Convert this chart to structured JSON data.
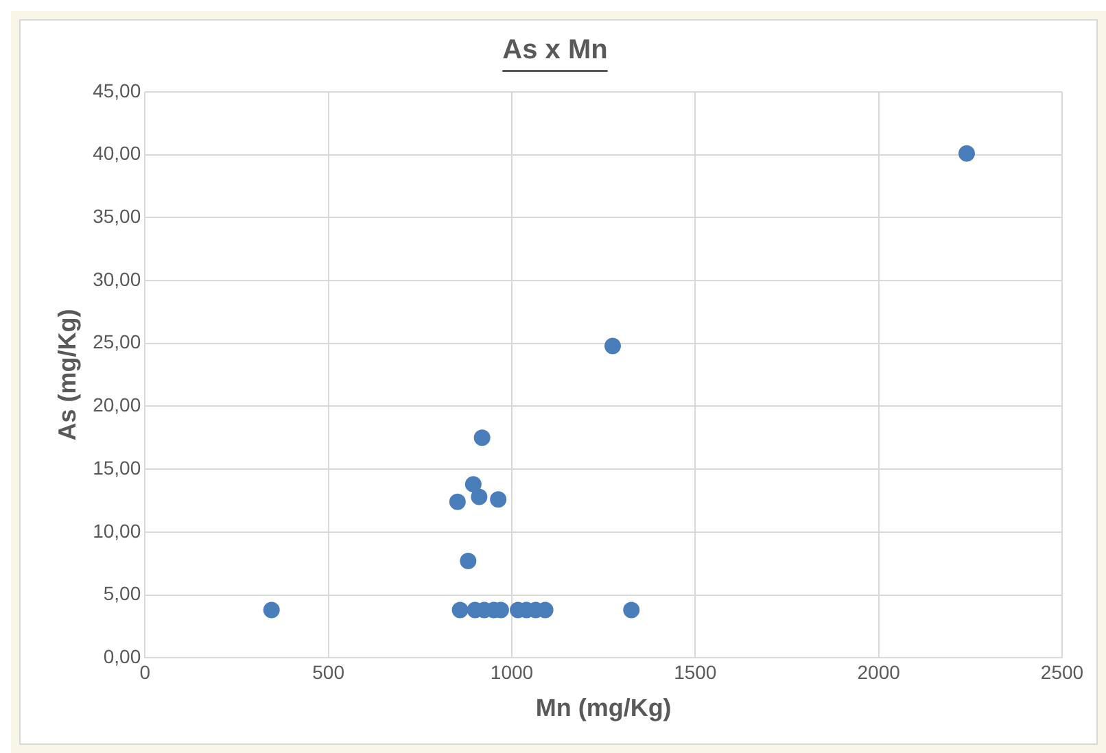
{
  "chart_data": {
    "type": "scatter",
    "title": "As x Mn",
    "xlabel": "Mn (mg/Kg)",
    "ylabel": "As (mg/Kg)",
    "x": [
      345,
      2240,
      1275,
      1326,
      919,
      895,
      852,
      911,
      963,
      881,
      859,
      900,
      925,
      951,
      970,
      1017,
      1040,
      1065,
      1091
    ],
    "series": [
      {
        "color": "#4a7ebb",
        "values": [
          3.8,
          40.1,
          24.8,
          3.8,
          17.5,
          13.8,
          12.4,
          12.8,
          12.6,
          7.7,
          3.8,
          3.8,
          3.8,
          3.8,
          3.8,
          3.8,
          3.8,
          3.8,
          3.8
        ]
      }
    ],
    "xlim": [
      0,
      2500
    ],
    "xticks": [
      0,
      500,
      1000,
      1500,
      2000,
      2500
    ],
    "ylim": [
      0,
      45
    ],
    "yticks": [
      {
        "value": 0,
        "label": "0,00"
      },
      {
        "value": 5,
        "label": "5,00"
      },
      {
        "value": 10,
        "label": "10,00"
      },
      {
        "value": 15,
        "label": "15,00"
      },
      {
        "value": 20,
        "label": "20,00"
      },
      {
        "value": 25,
        "label": "25,00"
      },
      {
        "value": 30,
        "label": "30,00"
      },
      {
        "value": 35,
        "label": "35,00"
      },
      {
        "value": 40,
        "label": "40,00"
      },
      {
        "value": 45,
        "label": "45,00"
      }
    ],
    "grid": true,
    "legend": false,
    "marker": "circle"
  }
}
